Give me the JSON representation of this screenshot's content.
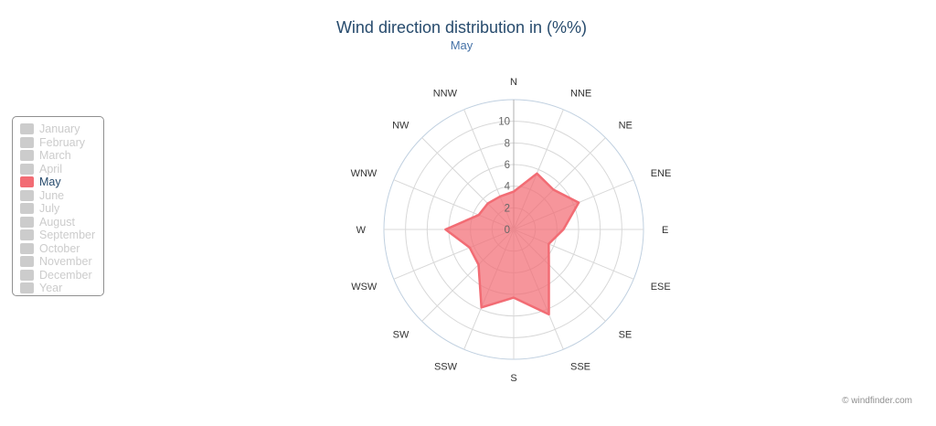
{
  "chart_data": {
    "type": "radar-area",
    "title": "Wind direction distribution in (%%)",
    "subtitle": "May",
    "directions": [
      "N",
      "NNE",
      "NE",
      "ENE",
      "E",
      "ESE",
      "SE",
      "SSE",
      "S",
      "SSW",
      "SW",
      "WSW",
      "W",
      "WNW",
      "NW",
      "NNW"
    ],
    "series": [
      {
        "name": "May",
        "values": [
          3.5,
          5.6,
          5.2,
          6.5,
          4.6,
          3.5,
          4.6,
          8.5,
          6.3,
          7.8,
          4.6,
          4.4,
          6.3,
          3.5,
          3.4,
          3.3
        ],
        "color": "#f26c74"
      }
    ],
    "radial_ticks": [
      0,
      2,
      4,
      6,
      8,
      10
    ],
    "rlim": [
      0,
      12
    ],
    "grid": true,
    "legend_position": "left"
  },
  "legend": {
    "items": [
      {
        "label": "January",
        "active": false
      },
      {
        "label": "February",
        "active": false
      },
      {
        "label": "March",
        "active": false
      },
      {
        "label": "April",
        "active": false
      },
      {
        "label": "May",
        "active": true
      },
      {
        "label": "June",
        "active": false
      },
      {
        "label": "July",
        "active": false
      },
      {
        "label": "August",
        "active": false
      },
      {
        "label": "September",
        "active": false
      },
      {
        "label": "October",
        "active": false
      },
      {
        "label": "November",
        "active": false
      },
      {
        "label": "December",
        "active": false
      },
      {
        "label": "Year",
        "active": false
      }
    ]
  },
  "credit": "© windfinder.com",
  "colors": {
    "title": "#274b6d",
    "subtitle": "#4572a7",
    "series": "#f26c74",
    "grid": "#d8d8d8"
  }
}
